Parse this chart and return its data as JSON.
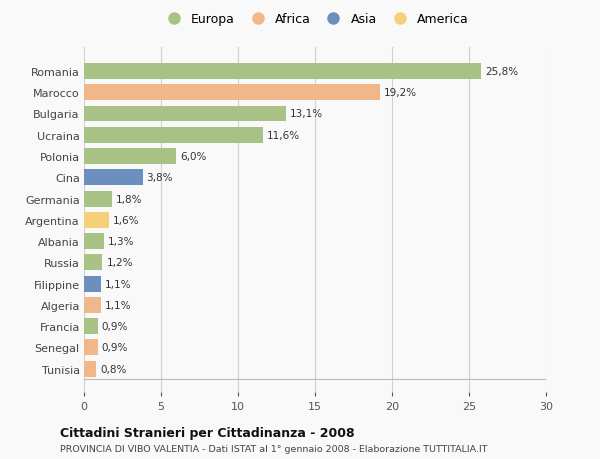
{
  "countries": [
    "Romania",
    "Marocco",
    "Bulgaria",
    "Ucraina",
    "Polonia",
    "Cina",
    "Germania",
    "Argentina",
    "Albania",
    "Russia",
    "Filippine",
    "Algeria",
    "Francia",
    "Senegal",
    "Tunisia"
  ],
  "values": [
    25.8,
    19.2,
    13.1,
    11.6,
    6.0,
    3.8,
    1.8,
    1.6,
    1.3,
    1.2,
    1.1,
    1.1,
    0.9,
    0.9,
    0.8
  ],
  "labels": [
    "25,8%",
    "19,2%",
    "13,1%",
    "11,6%",
    "6,0%",
    "3,8%",
    "1,8%",
    "1,6%",
    "1,3%",
    "1,2%",
    "1,1%",
    "1,1%",
    "0,9%",
    "0,9%",
    "0,8%"
  ],
  "continents": [
    "Europa",
    "Africa",
    "Europa",
    "Europa",
    "Europa",
    "Asia",
    "Europa",
    "America",
    "Europa",
    "Europa",
    "Asia",
    "Africa",
    "Europa",
    "Africa",
    "Africa"
  ],
  "colors": {
    "Europa": "#a8c285",
    "Africa": "#f0b88a",
    "Asia": "#6b8fbf",
    "America": "#f5d07a"
  },
  "xlim": [
    0,
    30
  ],
  "xticks": [
    0,
    5,
    10,
    15,
    20,
    25,
    30
  ],
  "title": "Cittadini Stranieri per Cittadinanza - 2008",
  "subtitle": "PROVINCIA DI VIBO VALENTIA - Dati ISTAT al 1° gennaio 2008 - Elaborazione TUTTITALIA.IT",
  "bg_color": "#f9f9f9",
  "grid_color": "#d0d0d0",
  "bar_height": 0.75,
  "legend_order": [
    "Europa",
    "Africa",
    "Asia",
    "America"
  ]
}
